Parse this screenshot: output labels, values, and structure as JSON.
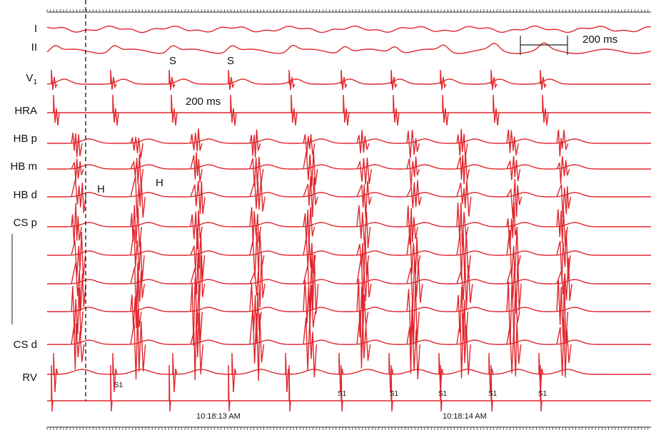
{
  "leads": [
    {
      "label": "I"
    },
    {
      "label": "II"
    },
    {
      "label": "V",
      "sub": "1"
    },
    {
      "label": "HRA"
    },
    {
      "label": "HB p"
    },
    {
      "label": "HB m"
    },
    {
      "label": "HB d"
    },
    {
      "label": "CS p"
    },
    {
      "label": ""
    },
    {
      "label": ""
    },
    {
      "label": ""
    },
    {
      "label": "CS d"
    },
    {
      "label": "RV"
    }
  ],
  "annotations": {
    "scale_bar": "200 ms",
    "interval": "200 ms",
    "s_mark_1": "S",
    "s_mark_2": "S",
    "h_mark_1": "H",
    "h_mark_2": "H",
    "stim_label": "S1"
  },
  "timestamps": [
    "10:18:13 AM",
    "10:18:14 AM"
  ],
  "colors": {
    "trace": "#e0262c",
    "text": "#111111",
    "axis": "#222222"
  }
}
